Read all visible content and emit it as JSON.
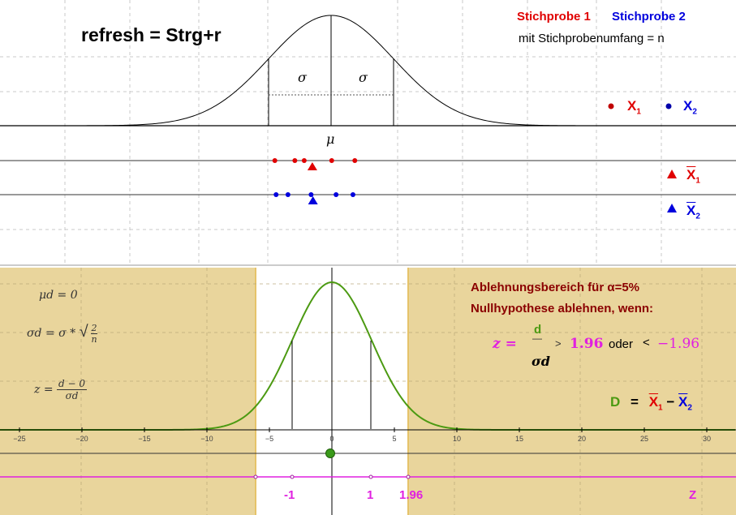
{
  "header": {
    "refresh": "refresh = Strg+r",
    "sample1": "Stichprobe 1",
    "sample2": "Stichprobe 2",
    "sample_size": "mit Stichprobenumfang = n"
  },
  "top_plot": {
    "sigma_left": "σ",
    "sigma_right": "σ",
    "mu": "μ",
    "legend": {
      "x1_letter": "X",
      "x1_sub": "1",
      "x2_letter": "X",
      "x2_sub": "2",
      "xbar1_letter": "X",
      "xbar1_sub": "1",
      "xbar2_letter": "X",
      "xbar2_sub": "2"
    },
    "sample1_points": [
      -9,
      -5.8,
      -4.3,
      0.1,
      3.8
    ],
    "sample1_mean": -3.0,
    "sample2_points": [
      -8.8,
      -6.9,
      -3.2,
      0.8,
      3.5
    ],
    "sample2_mean": -2.9
  },
  "bottom_plot": {
    "mu_d": "μd = 0",
    "sigma_d_lhs": "σd = σ * ",
    "sigma_d_frac_num": "2",
    "sigma_d_frac_den": "n",
    "z_lhs": "z = ",
    "z_num": "d − 0",
    "z_den": "σd",
    "rejection_title": "Ablehnungsbereich für α=5%",
    "reject_condition": "Nullhypothese ablehnen, wenn:",
    "ineq_z": "z =",
    "ineq_num": "d",
    "ineq_dash": "—",
    "ineq_den": "σd",
    "ineq_gt": ">",
    "crit_pos": "1.96",
    "ineq_or": "oder",
    "ineq_lt": "<",
    "crit_neg": "−1.96",
    "d_label": "D",
    "d_eq": "=",
    "d_x1": "X",
    "d_x1_sub": "1",
    "d_minus": "−",
    "d_x2": "X",
    "d_x2_sub": "2",
    "x_ticks": [
      "-25",
      "-20",
      "-15",
      "-10",
      "-5",
      "0",
      "5",
      "10",
      "15",
      "20",
      "25",
      "30"
    ],
    "z_axis_labels": [
      "-1",
      "1",
      "1.96"
    ],
    "z_axis_name": "Z"
  },
  "colors": {
    "sample1": "#e00000",
    "sample2": "#0000dd",
    "rejection_fill": "#e9d59c",
    "rejection_edge": "#e6c36a",
    "curve_green": "#4c9a12",
    "z_axis": "#e020e0",
    "rejection_text": "#8b0000"
  }
}
